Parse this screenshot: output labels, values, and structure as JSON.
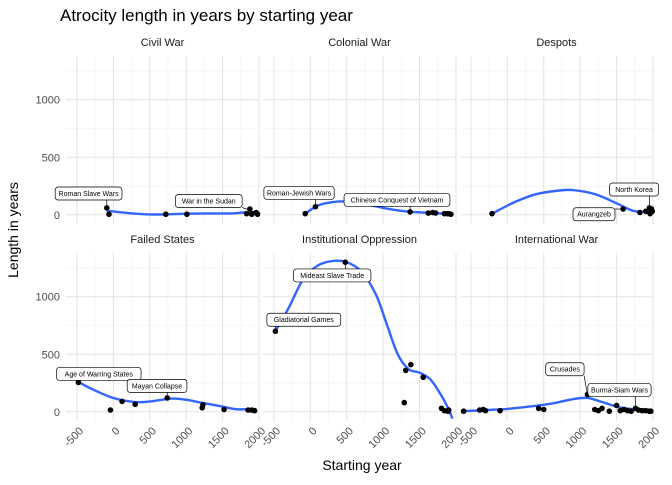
{
  "chart_data": {
    "type": "scatter",
    "title": "Atrocity length in years by starting year",
    "xlabel": "Starting year",
    "ylabel": "Length in years",
    "xlim": [
      -650,
      2000
    ],
    "ylim": [
      -80,
      1380
    ],
    "x_ticks": [
      -500,
      0,
      500,
      1000,
      1500,
      2000
    ],
    "x_tick_labels": [
      "-500",
      "0",
      "500",
      "1000",
      "1500",
      "2000"
    ],
    "y_ticks": [
      0,
      500,
      1000
    ],
    "y_tick_labels": [
      "0",
      "500",
      "1000"
    ],
    "grid": true,
    "point_color": "#000000",
    "smooth_color": "#3366ff",
    "panels": [
      {
        "name": "Civil War",
        "points": [
          [
            -90,
            60
          ],
          [
            -60,
            5
          ],
          [
            720,
            5
          ],
          [
            1010,
            5
          ],
          [
            1830,
            10
          ],
          [
            1875,
            50
          ],
          [
            1900,
            5
          ],
          [
            1960,
            20
          ],
          [
            1980,
            5
          ]
        ],
        "smooth": [
          [
            -90,
            35
          ],
          [
            200,
            15
          ],
          [
            500,
            3
          ],
          [
            800,
            5
          ],
          [
            1000,
            10
          ],
          [
            1300,
            12
          ],
          [
            1600,
            12
          ],
          [
            1800,
            20
          ],
          [
            1990,
            20
          ]
        ],
        "labels": [
          {
            "text": "Roman Slave Wars",
            "x": -90,
            "y": 60,
            "lx": -340,
            "ly": 185
          },
          {
            "text": "War in the Sudan",
            "x": 1960,
            "y": 20,
            "lx": 1310,
            "ly": 120
          }
        ]
      },
      {
        "name": "Colonial War",
        "points": [
          [
            -70,
            10
          ],
          [
            70,
            70
          ],
          [
            1370,
            25
          ],
          [
            1620,
            15
          ],
          [
            1680,
            20
          ],
          [
            1720,
            15
          ],
          [
            1840,
            10
          ],
          [
            1880,
            10
          ],
          [
            1900,
            10
          ],
          [
            1930,
            5
          ]
        ],
        "smooth": [
          [
            -70,
            10
          ],
          [
            100,
            80
          ],
          [
            300,
            110
          ],
          [
            500,
            115
          ],
          [
            700,
            100
          ],
          [
            1000,
            60
          ],
          [
            1300,
            30
          ],
          [
            1600,
            18
          ],
          [
            1800,
            12
          ],
          [
            1950,
            8
          ]
        ],
        "labels": [
          {
            "text": "Roman-Jewish Wars",
            "x": 70,
            "y": 70,
            "lx": -155,
            "ly": 190
          },
          {
            "text": "Chinese Conquest of Vietnam",
            "x": 1370,
            "y": 25,
            "lx": 1190,
            "ly": 130
          }
        ]
      },
      {
        "name": "Despots",
        "points": [
          [
            -210,
            10
          ],
          [
            1590,
            50
          ],
          [
            1820,
            20
          ],
          [
            1900,
            30
          ],
          [
            1950,
            60
          ],
          [
            1960,
            10
          ],
          [
            1980,
            50
          ],
          [
            1990,
            30
          ]
        ],
        "smooth": [
          [
            -210,
            10
          ],
          [
            100,
            110
          ],
          [
            400,
            180
          ],
          [
            700,
            210
          ],
          [
            900,
            215
          ],
          [
            1200,
            180
          ],
          [
            1500,
            100
          ],
          [
            1700,
            40
          ],
          [
            1850,
            25
          ],
          [
            1990,
            40
          ]
        ],
        "labels": [
          {
            "text": "North Korea",
            "x": 1950,
            "y": 60,
            "lx": 1740,
            "ly": 220
          },
          {
            "text": "Aurangzeb",
            "x": 1590,
            "y": 50,
            "lx": 1190,
            "ly": 5
          }
        ]
      },
      {
        "name": "Failed States",
        "points": [
          [
            -480,
            255
          ],
          [
            -40,
            15
          ],
          [
            120,
            90
          ],
          [
            300,
            65
          ],
          [
            740,
            120
          ],
          [
            1220,
            35
          ],
          [
            1230,
            60
          ],
          [
            1520,
            20
          ],
          [
            1850,
            15
          ],
          [
            1900,
            15
          ],
          [
            1940,
            10
          ]
        ],
        "smooth": [
          [
            -480,
            260
          ],
          [
            -300,
            200
          ],
          [
            0,
            120
          ],
          [
            300,
            85
          ],
          [
            500,
            90
          ],
          [
            800,
            115
          ],
          [
            1000,
            105
          ],
          [
            1200,
            80
          ],
          [
            1500,
            45
          ],
          [
            1700,
            22
          ],
          [
            1950,
            25
          ]
        ],
        "labels": [
          {
            "text": "Age of Warring States",
            "x": -480,
            "y": 255,
            "lx": -200,
            "ly": 330
          },
          {
            "text": "Mayan Collapse",
            "x": 740,
            "y": 120,
            "lx": 600,
            "ly": 225
          }
        ]
      },
      {
        "name": "Institutional Oppression",
        "points": [
          [
            -480,
            700
          ],
          [
            480,
            1300
          ],
          [
            1290,
            80
          ],
          [
            1310,
            360
          ],
          [
            1380,
            410
          ],
          [
            1550,
            300
          ],
          [
            1800,
            30
          ],
          [
            1840,
            10
          ],
          [
            1890,
            5
          ],
          [
            1900,
            15
          ]
        ],
        "smooth": [
          [
            -480,
            700
          ],
          [
            -300,
            900
          ],
          [
            -100,
            1150
          ],
          [
            100,
            1270
          ],
          [
            300,
            1310
          ],
          [
            500,
            1300
          ],
          [
            700,
            1220
          ],
          [
            900,
            1020
          ],
          [
            1050,
            760
          ],
          [
            1200,
            500
          ],
          [
            1350,
            370
          ],
          [
            1500,
            340
          ],
          [
            1650,
            280
          ],
          [
            1800,
            140
          ],
          [
            1900,
            20
          ],
          [
            1950,
            -60
          ]
        ],
        "labels": [
          {
            "text": "Mideast Slave Trade",
            "x": 480,
            "y": 1300,
            "lx": 300,
            "ly": 1185
          },
          {
            "text": "Gladiatorial Games",
            "x": -480,
            "y": 700,
            "lx": -90,
            "ly": 800
          }
        ]
      },
      {
        "name": "International War",
        "points": [
          [
            -600,
            5
          ],
          [
            -380,
            15
          ],
          [
            -330,
            20
          ],
          [
            -300,
            10
          ],
          [
            -100,
            10
          ],
          [
            430,
            30
          ],
          [
            500,
            20
          ],
          [
            1100,
            150
          ],
          [
            1200,
            20
          ],
          [
            1250,
            10
          ],
          [
            1300,
            30
          ],
          [
            1400,
            5
          ],
          [
            1500,
            55
          ],
          [
            1550,
            10
          ],
          [
            1600,
            20
          ],
          [
            1650,
            10
          ],
          [
            1700,
            5
          ],
          [
            1760,
            30
          ],
          [
            1800,
            15
          ],
          [
            1850,
            10
          ],
          [
            1900,
            10
          ],
          [
            1950,
            5
          ],
          [
            1970,
            5
          ]
        ],
        "smooth": [
          [
            -600,
            5
          ],
          [
            -300,
            15
          ],
          [
            0,
            25
          ],
          [
            300,
            45
          ],
          [
            600,
            70
          ],
          [
            900,
            110
          ],
          [
            1100,
            120
          ],
          [
            1300,
            85
          ],
          [
            1500,
            45
          ],
          [
            1700,
            25
          ],
          [
            1900,
            20
          ],
          [
            1990,
            15
          ]
        ],
        "labels": [
          {
            "text": "Crusades",
            "x": 1100,
            "y": 150,
            "lx": 790,
            "ly": 370
          },
          {
            "text": "Burma-Siam Wars",
            "x": 1760,
            "y": 30,
            "lx": 1540,
            "ly": 190
          }
        ]
      }
    ]
  }
}
